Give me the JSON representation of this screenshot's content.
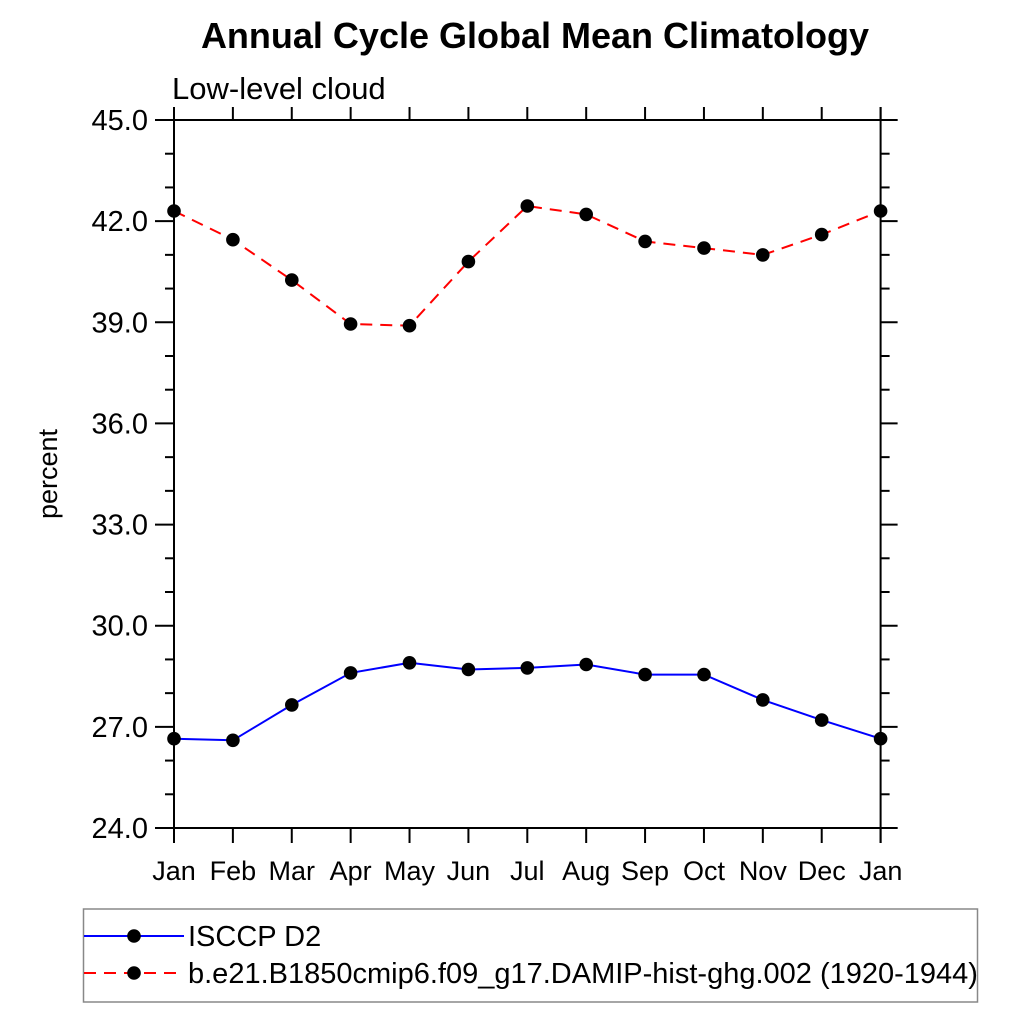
{
  "chart_data": {
    "type": "line",
    "title": "Annual Cycle Global Mean Climatology",
    "subtitle": "Low-level cloud",
    "ylabel": "percent",
    "xlabel": "",
    "categories": [
      "Jan",
      "Feb",
      "Mar",
      "Apr",
      "May",
      "Jun",
      "Jul",
      "Aug",
      "Sep",
      "Oct",
      "Nov",
      "Dec",
      "Jan"
    ],
    "series": [
      {
        "name": "ISCCP D2",
        "color": "#0000ff",
        "line_style": "solid",
        "marker": "filled-circle",
        "marker_color": "#000000",
        "values": [
          26.65,
          26.6,
          27.65,
          28.6,
          28.9,
          28.7,
          28.75,
          28.85,
          28.55,
          28.55,
          27.8,
          27.2,
          26.65
        ]
      },
      {
        "name": "b.e21.B1850cmip6.f09_g17.DAMIP-hist-ghg.002 (1920-1944)",
        "color": "#ff0000",
        "line_style": "dashed",
        "marker": "filled-circle",
        "marker_color": "#000000",
        "values": [
          42.3,
          41.45,
          40.25,
          38.95,
          38.9,
          40.8,
          42.45,
          42.2,
          41.4,
          41.2,
          41.0,
          41.6,
          42.3
        ]
      }
    ],
    "ylim": [
      24.0,
      45.0
    ],
    "ytick_major": [
      24.0,
      27.0,
      30.0,
      33.0,
      36.0,
      39.0,
      42.0,
      45.0
    ],
    "ytick_major_labels": [
      "24.0",
      "27.0",
      "30.0",
      "33.0",
      "36.0",
      "39.0",
      "42.0",
      "45.0"
    ],
    "ytick_minor_step": 1.0,
    "grid": false,
    "legend_position": "bottom"
  },
  "colors": {
    "background": "#ffffff",
    "axis": "#000000",
    "text": "#000000",
    "marker": "#000000",
    "series1": "#0000ff",
    "series2": "#ff0000",
    "legend_border": "#888888"
  }
}
